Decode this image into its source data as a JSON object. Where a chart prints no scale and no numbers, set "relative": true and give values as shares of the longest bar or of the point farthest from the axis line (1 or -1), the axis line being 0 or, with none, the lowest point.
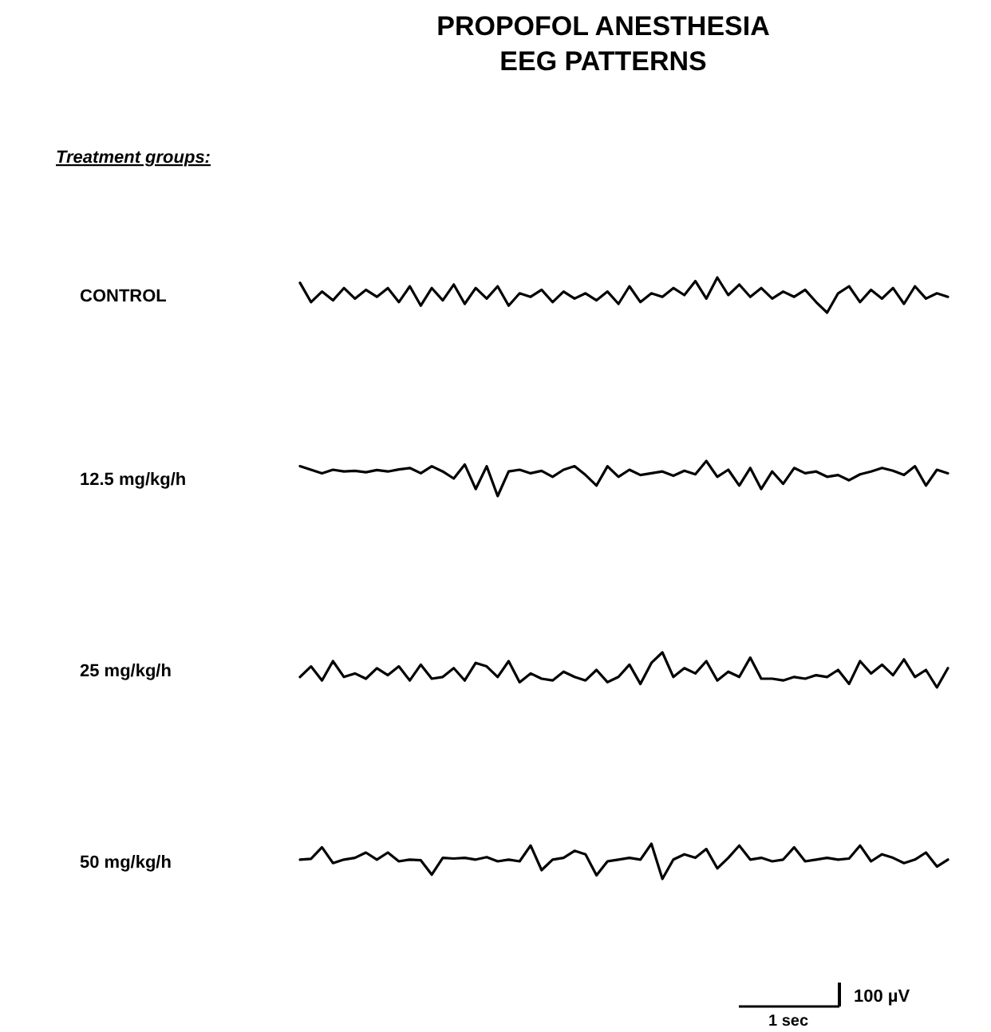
{
  "chart_data": [
    {
      "type": "line",
      "title": "PROPOFOL ANESTHESIA\nEEG PATTERNS",
      "subtitle": "Treatment groups:",
      "relative": true,
      "categories": [
        null,
        null,
        null,
        null,
        null,
        null,
        null,
        null,
        null,
        null,
        null,
        null,
        null,
        null,
        null,
        null,
        null,
        null,
        null,
        null,
        null,
        null,
        null,
        null,
        null,
        null,
        null,
        null,
        null,
        null,
        null,
        null,
        null,
        null,
        null,
        null,
        null,
        null,
        null,
        null,
        null,
        null,
        null,
        null,
        null,
        null,
        null,
        null,
        null,
        null,
        null,
        null,
        null,
        null,
        null,
        null,
        null,
        null,
        null,
        null
      ],
      "series": [
        {
          "name": "CONTROL",
          "color": "#000000",
          "values": [
            0.85,
            0.3,
            0.6,
            0.35,
            0.7,
            0.4,
            0.65,
            0.45,
            0.7,
            0.3,
            0.75,
            0.2,
            0.7,
            0.35,
            0.8,
            0.25,
            0.7,
            0.4,
            0.75,
            0.2,
            0.55,
            0.45,
            0.65,
            0.3,
            0.6,
            0.4,
            0.55,
            0.35,
            0.6,
            0.25,
            0.75,
            0.3,
            0.55,
            0.45,
            0.7,
            0.5,
            0.9,
            0.4,
            1.0,
            0.5,
            0.8,
            0.45,
            0.7,
            0.4,
            0.6,
            0.45,
            0.65,
            0.3,
            0.0,
            0.55,
            0.75,
            0.3,
            0.65,
            0.4,
            0.7,
            0.25,
            0.75,
            0.4,
            0.55,
            0.45
          ]
        }
      ]
    },
    {
      "type": "line",
      "relative": true,
      "categories": [
        null,
        null,
        null,
        null,
        null,
        null,
        null,
        null,
        null,
        null,
        null,
        null,
        null,
        null,
        null,
        null,
        null,
        null,
        null,
        null,
        null,
        null,
        null,
        null,
        null,
        null,
        null,
        null,
        null,
        null,
        null,
        null,
        null,
        null,
        null,
        null,
        null,
        null,
        null,
        null,
        null,
        null,
        null,
        null,
        null,
        null,
        null,
        null,
        null,
        null,
        null,
        null,
        null,
        null,
        null,
        null,
        null,
        null,
        null,
        null
      ],
      "series": [
        {
          "name": "12.5 mg/kg/h",
          "color": "#000000",
          "values": [
            0.85,
            0.75,
            0.65,
            0.75,
            0.7,
            0.72,
            0.68,
            0.74,
            0.7,
            0.76,
            0.8,
            0.65,
            0.85,
            0.7,
            0.5,
            0.9,
            0.2,
            0.85,
            0.0,
            0.7,
            0.75,
            0.65,
            0.72,
            0.55,
            0.75,
            0.85,
            0.6,
            0.3,
            0.85,
            0.55,
            0.75,
            0.6,
            0.65,
            0.7,
            0.58,
            0.72,
            0.62,
            1.0,
            0.55,
            0.75,
            0.3,
            0.8,
            0.2,
            0.7,
            0.35,
            0.8,
            0.65,
            0.7,
            0.55,
            0.6,
            0.45,
            0.62,
            0.7,
            0.8,
            0.72,
            0.6,
            0.85,
            0.3,
            0.75,
            0.65
          ]
        }
      ]
    },
    {
      "type": "line",
      "relative": true,
      "categories": [
        null,
        null,
        null,
        null,
        null,
        null,
        null,
        null,
        null,
        null,
        null,
        null,
        null,
        null,
        null,
        null,
        null,
        null,
        null,
        null,
        null,
        null,
        null,
        null,
        null,
        null,
        null,
        null,
        null,
        null,
        null,
        null,
        null,
        null,
        null,
        null,
        null,
        null,
        null,
        null,
        null,
        null,
        null,
        null,
        null,
        null,
        null,
        null,
        null,
        null,
        null,
        null,
        null,
        null,
        null,
        null,
        null,
        null,
        null,
        null
      ],
      "series": [
        {
          "name": "25 mg/kg/h",
          "color": "#000000",
          "values": [
            0.3,
            0.6,
            0.2,
            0.75,
            0.3,
            0.4,
            0.25,
            0.55,
            0.35,
            0.6,
            0.2,
            0.65,
            0.25,
            0.3,
            0.55,
            0.2,
            0.7,
            0.6,
            0.3,
            0.75,
            0.15,
            0.4,
            0.25,
            0.2,
            0.45,
            0.3,
            0.2,
            0.5,
            0.15,
            0.3,
            0.65,
            0.1,
            0.7,
            1.0,
            0.3,
            0.55,
            0.4,
            0.75,
            0.2,
            0.45,
            0.3,
            0.85,
            0.25,
            0.25,
            0.2,
            0.3,
            0.25,
            0.35,
            0.3,
            0.5,
            0.1,
            0.75,
            0.4,
            0.65,
            0.35,
            0.8,
            0.3,
            0.5,
            0.0,
            0.55
          ]
        }
      ]
    },
    {
      "type": "line",
      "relative": true,
      "annotations": [
        "1 sec",
        "100 µV"
      ],
      "categories": [
        null,
        null,
        null,
        null,
        null,
        null,
        null,
        null,
        null,
        null,
        null,
        null,
        null,
        null,
        null,
        null,
        null,
        null,
        null,
        null,
        null,
        null,
        null,
        null,
        null,
        null,
        null,
        null,
        null,
        null,
        null,
        null,
        null,
        null,
        null,
        null,
        null,
        null,
        null,
        null,
        null,
        null,
        null,
        null,
        null,
        null,
        null,
        null,
        null,
        null,
        null,
        null,
        null,
        null,
        null,
        null,
        null,
        null,
        null,
        null
      ],
      "series": [
        {
          "name": "50 mg/kg/h",
          "color": "#000000",
          "values": [
            0.55,
            0.57,
            0.9,
            0.45,
            0.55,
            0.6,
            0.75,
            0.55,
            0.75,
            0.5,
            0.55,
            0.53,
            0.12,
            0.6,
            0.58,
            0.6,
            0.55,
            0.62,
            0.5,
            0.55,
            0.5,
            0.95,
            0.25,
            0.55,
            0.6,
            0.8,
            0.7,
            0.1,
            0.5,
            0.55,
            0.6,
            0.55,
            1.0,
            0.0,
            0.55,
            0.7,
            0.6,
            0.85,
            0.3,
            0.6,
            0.95,
            0.55,
            0.6,
            0.5,
            0.55,
            0.9,
            0.5,
            0.55,
            0.6,
            0.55,
            0.58,
            0.95,
            0.5,
            0.7,
            0.6,
            0.45,
            0.55,
            0.75,
            0.35,
            0.55
          ]
        }
      ]
    }
  ]
}
